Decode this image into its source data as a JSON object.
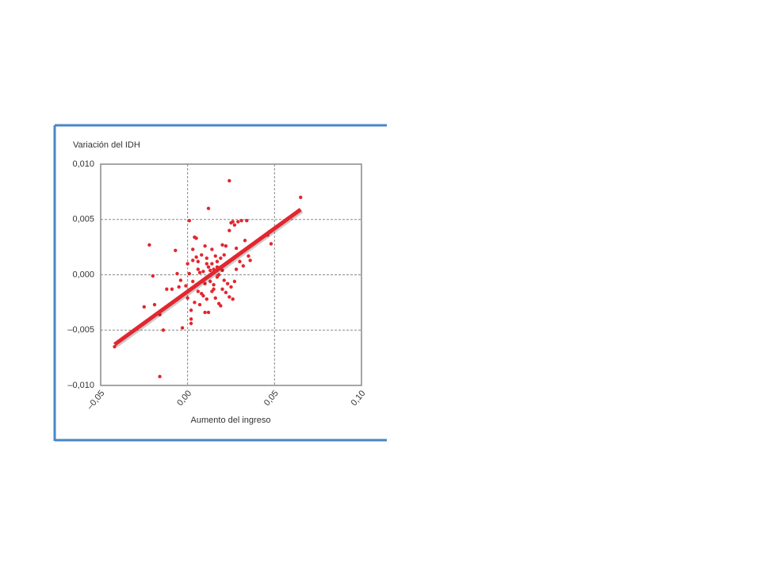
{
  "chart_data": {
    "type": "scatter",
    "title": "Variación del IDH",
    "xlabel": "Aumento del ingreso",
    "color": "#e3262f",
    "grid": true,
    "xlim": [
      -0.05,
      0.1
    ],
    "xticks": [
      {
        "value": -0.05,
        "label": "–0,05"
      },
      {
        "value": 0,
        "label": "0,00"
      },
      {
        "value": 0.05,
        "label": "0,05"
      },
      {
        "value": 0.1,
        "label": "0,10"
      }
    ],
    "ylim": [
      -0.01,
      0.01
    ],
    "yticks": [
      {
        "value": -0.01,
        "label": "–0,010"
      },
      {
        "value": -0.005,
        "label": "–0,005"
      },
      {
        "value": 0,
        "label": "0,000"
      },
      {
        "value": 0.005,
        "label": "0,005"
      },
      {
        "value": 0.01,
        "label": "0,010"
      }
    ],
    "x": [
      -0.042,
      0.065,
      0.024,
      0.012,
      0.001,
      -0.022,
      -0.02,
      -0.025,
      -0.019,
      -0.016,
      -0.014,
      -0.016,
      -0.007,
      -0.004,
      -0.003,
      -0.012,
      -0.009,
      0.0,
      0.002,
      0.002,
      0.002,
      0.004,
      0.005,
      0.003,
      0.006,
      0.008,
      0.01,
      0.011,
      0.012,
      0.01,
      0.013,
      0.014,
      0.015,
      0.016,
      0.017,
      0.018,
      0.019,
      0.02,
      0.021,
      0.022,
      0.024,
      0.025,
      0.026,
      0.027,
      0.029,
      0.031,
      0.034,
      0.033,
      0.035,
      0.036,
      0.028,
      0.03,
      0.032,
      0.047,
      0.048,
      0.046,
      0.003,
      0.005,
      0.006,
      0.008,
      0.009,
      0.007,
      0.004,
      0.011,
      0.013,
      0.015,
      0.016,
      0.018,
      0.019,
      0.02,
      0.023,
      0.024,
      0.025,
      0.026,
      0.027,
      0.006,
      0.007,
      0.009,
      0.01,
      0.012,
      0.014,
      0.017,
      0.019,
      0.021,
      0.023,
      0.022,
      0.001,
      -0.001,
      0.0,
      0.003,
      0.005,
      -0.006,
      -0.005,
      0.008,
      0.015,
      0.02,
      0.017,
      0.014,
      0.011,
      0.028
    ],
    "values": [
      -0.0065,
      0.007,
      0.0085,
      0.006,
      0.0049,
      0.0027,
      -0.0001,
      -0.0029,
      -0.0027,
      -0.0036,
      -0.005,
      -0.0092,
      0.0022,
      -0.0005,
      -0.0048,
      -0.0013,
      -0.0013,
      -0.0021,
      -0.0032,
      -0.004,
      -0.0044,
      0.0034,
      0.0033,
      0.0013,
      0.0012,
      0.0018,
      0.0026,
      0.001,
      -0.0034,
      -0.0034,
      0.0004,
      0.0023,
      0.0005,
      0.0017,
      -0.0002,
      0.0,
      0.0015,
      0.0004,
      -0.0005,
      -0.0016,
      0.004,
      0.0047,
      0.0048,
      0.0045,
      0.0048,
      0.0049,
      0.0049,
      0.0031,
      0.0017,
      0.0013,
      0.0024,
      0.0012,
      0.0008,
      0.0039,
      0.0028,
      0.0036,
      -0.0006,
      -0.0009,
      -0.0015,
      -0.0017,
      -0.0019,
      -0.0027,
      -0.0025,
      -0.0022,
      -0.0006,
      -0.0013,
      -0.0021,
      -0.0026,
      -0.0028,
      -0.0013,
      -0.0008,
      -0.002,
      -0.0011,
      -0.0022,
      -0.0006,
      0.0005,
      0.0002,
      0.0003,
      -0.0008,
      0.0007,
      0.001,
      0.0012,
      0.0007,
      0.0018,
      0.0011,
      0.0026,
      0.0001,
      -0.001,
      0.001,
      0.0023,
      0.0016,
      0.0001,
      -0.0011,
      -0.0006,
      -0.0009,
      0.0027,
      0.0007,
      -0.0015,
      0.0015,
      0.0005
    ],
    "trend_line": {
      "x": [
        -0.042,
        0.065
      ],
      "values": [
        -0.0063,
        0.0059
      ],
      "color": "#e3262f"
    }
  }
}
